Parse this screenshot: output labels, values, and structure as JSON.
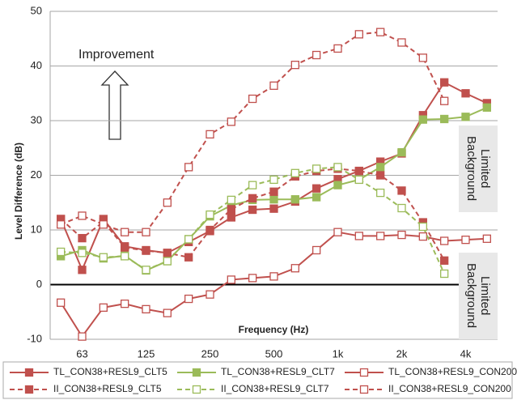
{
  "chart_data": {
    "type": "line",
    "y_label": "Level Difference (dB)",
    "x_label": "Frequency (Hz)",
    "categories": [
      null,
      "63",
      null,
      null,
      "125",
      null,
      null,
      "250",
      null,
      null,
      "500",
      null,
      null,
      "1k",
      null,
      null,
      "2k",
      null,
      null,
      "4k",
      null
    ],
    "ylim": [
      -10,
      50
    ],
    "yticks": [
      -10,
      0,
      10,
      20,
      30,
      40,
      50
    ],
    "grid": true,
    "annotations": [
      "Improvement",
      "Background Limited",
      "Background Limited"
    ],
    "series": [
      {
        "name": "TL_CON38+RESL9_CLT5",
        "color": "#c0504d",
        "line": "solid",
        "marker": "filled",
        "values": [
          12,
          2.7,
          12,
          7,
          6.3,
          5.8,
          7.8,
          9.8,
          12.3,
          13.7,
          13.9,
          15.2,
          17.6,
          19.3,
          20.8,
          22.5,
          24,
          31,
          37,
          35,
          33.2
        ]
      },
      {
        "name": "TL_CON38+RESL9_CLT7",
        "color": "#9bbb59",
        "line": "solid",
        "marker": "filled",
        "values": [
          5.2,
          6.3,
          4.8,
          5.3,
          2.6,
          4.3,
          8.3,
          12.5,
          14.5,
          15.5,
          15.6,
          15.6,
          16,
          18.2,
          19.2,
          21.5,
          24.2,
          30.2,
          30.3,
          30.7,
          32.4
        ]
      },
      {
        "name": "TL_CON38+RESL9_CON200",
        "color": "#c0504d",
        "line": "solid",
        "marker": "open",
        "values": [
          -3.3,
          -9.5,
          -4.2,
          -3.5,
          -4.5,
          -5.2,
          -2.6,
          -1.8,
          0.9,
          1.2,
          1.5,
          3,
          6.3,
          9.6,
          8.9,
          8.9,
          9.1,
          8.8,
          8,
          8.2,
          8.4
        ]
      },
      {
        "name": "II_CON38+RESL9_CLT5",
        "color": "#c0504d",
        "line": "dashed",
        "marker": "filled",
        "values": [
          12,
          8.5,
          11.5,
          6.8,
          6.2,
          5.8,
          5,
          10,
          13.8,
          15.8,
          17,
          19.8,
          20.8,
          21.2,
          20.8,
          20,
          17.2,
          11.4,
          4.4,
          null,
          null
        ]
      },
      {
        "name": "II_CON38+RESL9_CLT7",
        "color": "#9bbb59",
        "line": "dashed",
        "marker": "open",
        "values": [
          6,
          5.8,
          5,
          5.2,
          2.7,
          4.3,
          8.3,
          12.8,
          15.5,
          18.2,
          19.2,
          20.4,
          21.2,
          21.5,
          19.2,
          16.8,
          14,
          10.6,
          2,
          null,
          null
        ]
      },
      {
        "name": "II_CON38+RESL9_CON200",
        "color": "#c0504d",
        "line": "dashed",
        "marker": "open",
        "values": [
          11,
          12.6,
          11,
          9.6,
          9.6,
          15,
          21.5,
          27.5,
          29.8,
          34,
          36.4,
          40.2,
          42,
          43.2,
          45.8,
          46.2,
          44.3,
          41.5,
          33.6,
          null,
          null
        ]
      }
    ]
  }
}
